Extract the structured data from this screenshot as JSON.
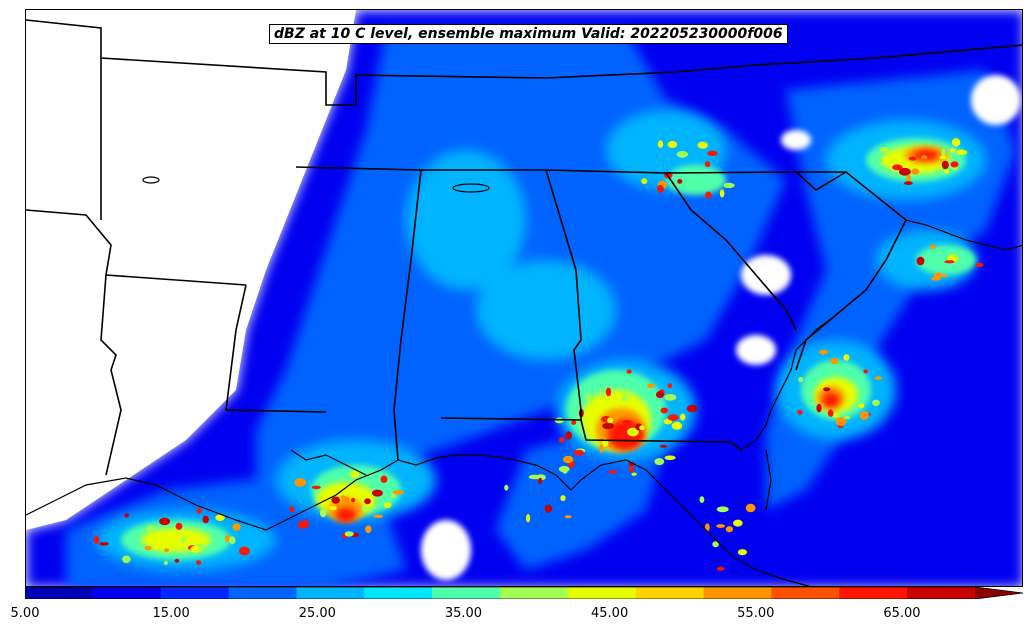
{
  "title": "dBZ at 10 C level, ensemble maximum Valid: 202205230000f006",
  "colorbar": {
    "ticks": [
      "5.00",
      "15.00",
      "25.00",
      "35.00",
      "45.00",
      "55.00",
      "65.00"
    ],
    "tick_values": [
      5,
      15,
      25,
      35,
      45,
      55,
      65
    ],
    "range": [
      5,
      70
    ],
    "extend": "max",
    "colors": [
      "#0000b4",
      "#0000f0",
      "#0028ff",
      "#0064ff",
      "#00b4ff",
      "#00e6ff",
      "#50ffaa",
      "#a0ff50",
      "#e6ff00",
      "#ffd200",
      "#ff9600",
      "#ff5000",
      "#ff1400",
      "#c80000",
      "#8c0000"
    ]
  },
  "map": {
    "background": "#ffffff",
    "border_color": "#000000",
    "max_echo_color": "#8c0000"
  }
}
